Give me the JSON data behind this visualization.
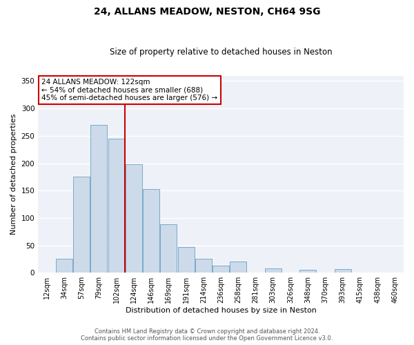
{
  "title": "24, ALLANS MEADOW, NESTON, CH64 9SG",
  "subtitle": "Size of property relative to detached houses in Neston",
  "xlabel": "Distribution of detached houses by size in Neston",
  "ylabel": "Number of detached properties",
  "bin_labels": [
    "12sqm",
    "34sqm",
    "57sqm",
    "79sqm",
    "102sqm",
    "124sqm",
    "146sqm",
    "169sqm",
    "191sqm",
    "214sqm",
    "236sqm",
    "258sqm",
    "281sqm",
    "303sqm",
    "326sqm",
    "348sqm",
    "370sqm",
    "393sqm",
    "415sqm",
    "438sqm",
    "460sqm"
  ],
  "bar_heights": [
    0,
    25,
    175,
    270,
    245,
    198,
    153,
    88,
    47,
    25,
    13,
    21,
    0,
    8,
    0,
    5,
    0,
    6,
    0,
    0,
    0
  ],
  "bar_color": "#ccdaea",
  "bar_edge_color": "#7aaac8",
  "vline_bin": 5,
  "vline_color": "#cc0000",
  "ylim": [
    0,
    360
  ],
  "yticks": [
    0,
    50,
    100,
    150,
    200,
    250,
    300,
    350
  ],
  "annotation_title": "24 ALLANS MEADOW: 122sqm",
  "annotation_line1": "← 54% of detached houses are smaller (688)",
  "annotation_line2": "45% of semi-detached houses are larger (576) →",
  "annotation_box_color": "#ffffff",
  "annotation_box_edge_color": "#cc0000",
  "footer_line1": "Contains HM Land Registry data © Crown copyright and database right 2024.",
  "footer_line2": "Contains public sector information licensed under the Open Government Licence v3.0.",
  "background_color": "#eef2f8",
  "grid_color": "#ffffff",
  "title_fontsize": 10,
  "subtitle_fontsize": 8.5,
  "tick_fontsize": 7,
  "label_fontsize": 8,
  "annotation_fontsize": 7.5
}
